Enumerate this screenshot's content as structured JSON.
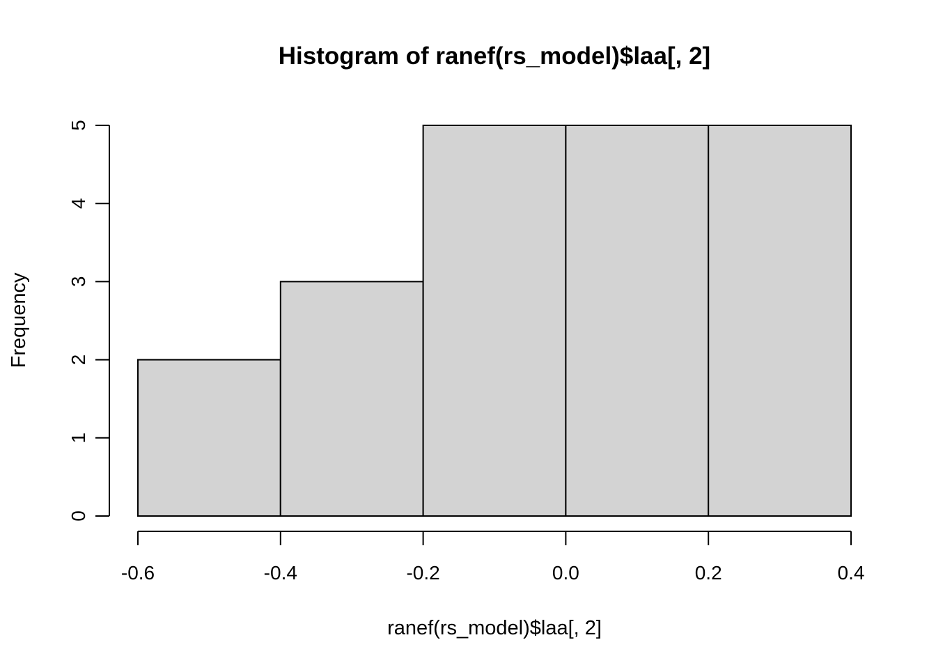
{
  "chart_data": {
    "type": "bar",
    "title": "Histogram of ranef(rs_model)$laa[, 2]",
    "xlabel": "ranef(rs_model)$laa[, 2]",
    "ylabel": "Frequency",
    "bins": [
      {
        "x0": -0.6,
        "x1": -0.4,
        "count": 2
      },
      {
        "x0": -0.4,
        "x1": -0.2,
        "count": 3
      },
      {
        "x0": -0.2,
        "x1": 0.0,
        "count": 5
      },
      {
        "x0": 0.0,
        "x1": 0.2,
        "count": 5
      },
      {
        "x0": 0.2,
        "x1": 0.4,
        "count": 5
      }
    ],
    "xlim": [
      -0.6,
      0.4
    ],
    "ylim": [
      0,
      5
    ],
    "x_ticks": [
      -0.6,
      -0.4,
      -0.2,
      0.0,
      0.2,
      0.4
    ],
    "x_tick_labels": [
      "-0.6",
      "-0.4",
      "-0.2",
      "0.0",
      "0.2",
      "0.4"
    ],
    "y_ticks": [
      0,
      1,
      2,
      3,
      4,
      5
    ],
    "y_tick_labels": [
      "0",
      "1",
      "2",
      "3",
      "4",
      "5"
    ],
    "grid": false,
    "legend": "none",
    "colors": {
      "bar_fill": "#d3d3d3",
      "bar_stroke": "#000000",
      "axis": "#000000",
      "background": "#ffffff"
    }
  }
}
